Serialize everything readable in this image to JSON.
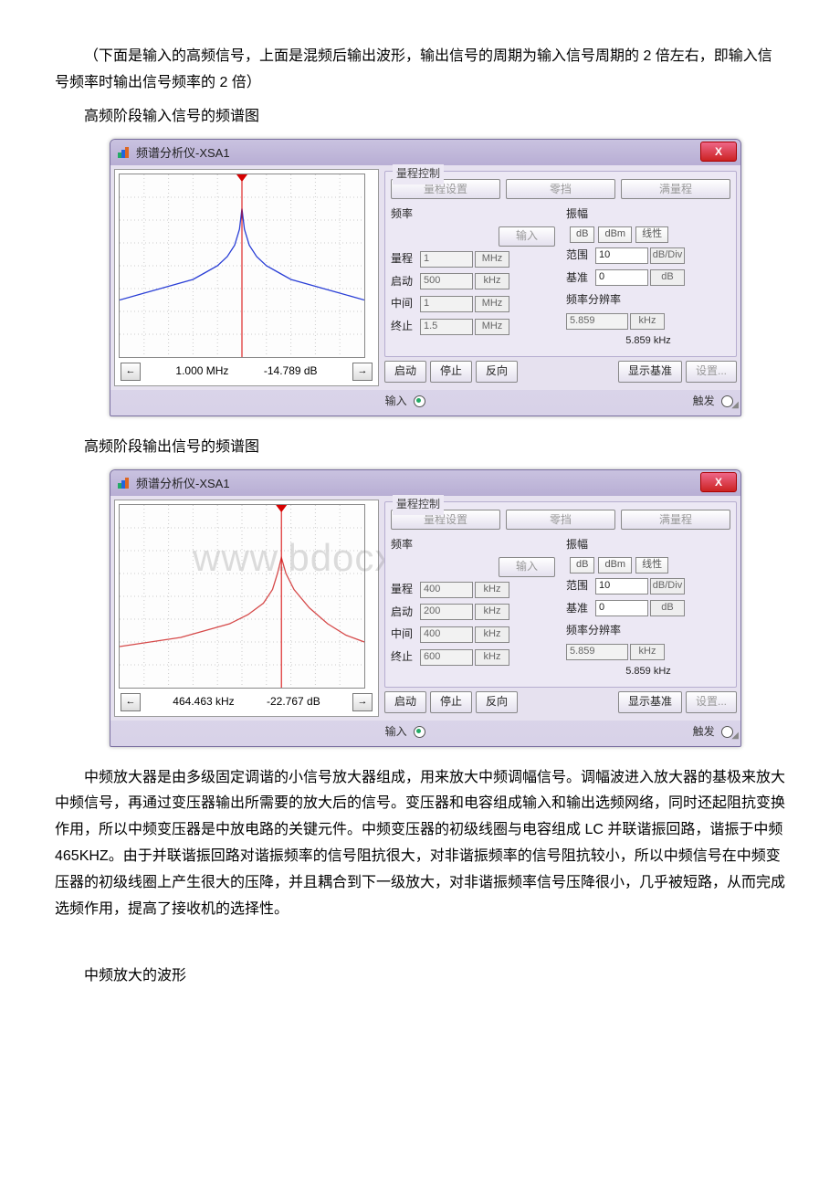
{
  "paragraphs": {
    "p1": "（下面是输入的高频信号，上面是混频后输出波形，输出信号的周期为输入信号周期的 2 倍左右，即输入信号频率时输出信号频率的 2 倍）",
    "p2": "高频阶段输入信号的频谱图",
    "p3": "高频阶段输出信号的频谱图",
    "p4": "中频放大器是由多级固定调谐的小信号放大器组成，用来放大中频调幅信号。调幅波进入放大器的基极来放大中频信号，再通过变压器输出所需要的放大后的信号。变压器和电容组成输入和输出选频网络，同时还起阻抗变换作用，所以中频变压器是中放电路的关键元件。中频变压器的初级线圈与电容组成 LC 并联谐振回路，谐振于中频 465KHZ。由于并联谐振回路对谐振频率的信号阻抗很大，对非谐振频率的信号阻抗较小，所以中频信号在中频变压器的初级线圈上产生很大的压降，并且耦合到下一级放大，对非谐振频率信号压降很小，几乎被短路，从而完成选频作用，提高了接收机的选择性。",
    "p5": "中频放大的波形"
  },
  "watermark": "www.bdocx.com",
  "window": {
    "title": "频谱分析仪-XSA1",
    "close": "X"
  },
  "labels": {
    "rangeControl": "量程控制",
    "rangeSet": "量程设置",
    "zero": "零挡",
    "fullRange": "满量程",
    "freq": "频率",
    "amp": "振幅",
    "input": "输入",
    "span": "量程",
    "start": "启动",
    "center": "中间",
    "stop": "终止",
    "range": "范围",
    "ref": "基准",
    "resBw": "频率分辨率",
    "startBtn": "启动",
    "stopBtn": "停止",
    "reverse": "反向",
    "showRef": "显示基准",
    "settings": "设置...",
    "inputFoot": "输入",
    "trigger": "触发",
    "dB": "dB",
    "dBm": "dBm",
    "linear": "线性",
    "dBDiv": "dB/Div",
    "kHz": "kHz",
    "MHz": "MHz"
  },
  "analyzer1": {
    "plot": {
      "type": "spectrum",
      "line_color": "#2a3fd6",
      "marker_color": "#d60000",
      "background": "#ffffff",
      "grid_color": "#cccccc",
      "xlim": [
        500,
        1500
      ],
      "ylim_db": [
        -80,
        0
      ],
      "peak_x_khz": 1000,
      "points_khz": [
        500,
        600,
        700,
        800,
        850,
        900,
        940,
        970,
        990,
        1000,
        1010,
        1030,
        1060,
        1100,
        1150,
        1200,
        1300,
        1400,
        1500
      ],
      "points_db": [
        -55,
        -52,
        -49,
        -46,
        -43,
        -40,
        -36,
        -31,
        -24,
        -15,
        -24,
        -31,
        -36,
        -40,
        -43,
        -46,
        -49,
        -52,
        -55
      ],
      "footer_freq": "1.000 MHz",
      "footer_db": "-14.789  dB"
    },
    "freq": {
      "span": {
        "val": "1",
        "unit": "MHz"
      },
      "start": {
        "val": "500",
        "unit": "kHz"
      },
      "center": {
        "val": "1",
        "unit": "MHz"
      },
      "stop": {
        "val": "1.5",
        "unit": "MHz"
      }
    },
    "amp": {
      "range": {
        "val": "10",
        "unit": "dB/Div"
      },
      "ref": {
        "val": "0",
        "unit": "dB"
      },
      "res": {
        "val": "5.859",
        "unit": "kHz"
      },
      "res_display": "5.859 kHz"
    }
  },
  "analyzer2": {
    "plot": {
      "type": "spectrum",
      "line_color": "#d64a4a",
      "marker_color": "#d60000",
      "background": "#ffffff",
      "grid_color": "#cccccc",
      "xlim": [
        200,
        600
      ],
      "ylim_db": [
        -80,
        0
      ],
      "peak_x_khz": 464.463,
      "points_khz": [
        200,
        250,
        300,
        340,
        380,
        410,
        435,
        450,
        458,
        464.463,
        472,
        485,
        510,
        540,
        570,
        600
      ],
      "points_db": [
        -62,
        -60,
        -58,
        -55,
        -52,
        -48,
        -43,
        -37,
        -30,
        -23,
        -30,
        -37,
        -45,
        -52,
        -57,
        -60
      ],
      "footer_freq": "464.463 kHz",
      "footer_db": "-22.767  dB"
    },
    "freq": {
      "span": {
        "val": "400",
        "unit": "kHz"
      },
      "start": {
        "val": "200",
        "unit": "kHz"
      },
      "center": {
        "val": "400",
        "unit": "kHz"
      },
      "stop": {
        "val": "600",
        "unit": "kHz"
      }
    },
    "amp": {
      "range": {
        "val": "10",
        "unit": "dB/Div"
      },
      "ref": {
        "val": "0",
        "unit": "dB"
      },
      "res": {
        "val": "5.859",
        "unit": "kHz"
      },
      "res_display": "5.859 kHz"
    }
  }
}
